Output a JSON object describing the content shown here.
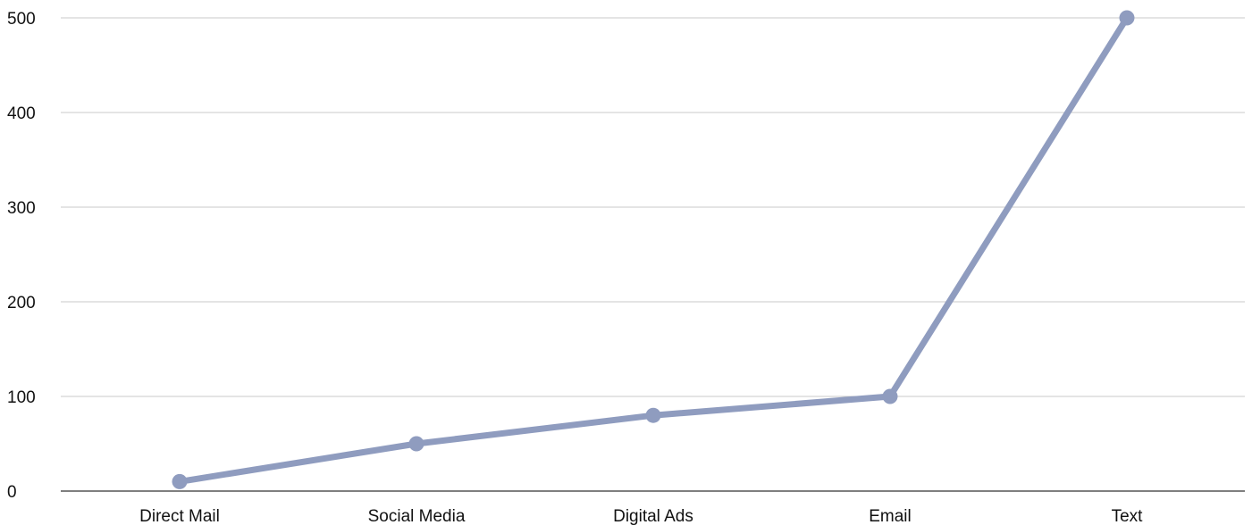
{
  "chart_data": {
    "type": "line",
    "categories": [
      "Direct Mail",
      "Social Media",
      "Digital Ads",
      "Email",
      "Text"
    ],
    "series": [
      {
        "values": [
          10,
          50,
          80,
          100,
          500
        ]
      }
    ],
    "yticks": [
      "0",
      "100",
      "200",
      "300",
      "400",
      "500"
    ],
    "ylim": [
      0,
      500
    ],
    "grid": true,
    "legend": "none",
    "line_color": "#8f9cbf"
  }
}
